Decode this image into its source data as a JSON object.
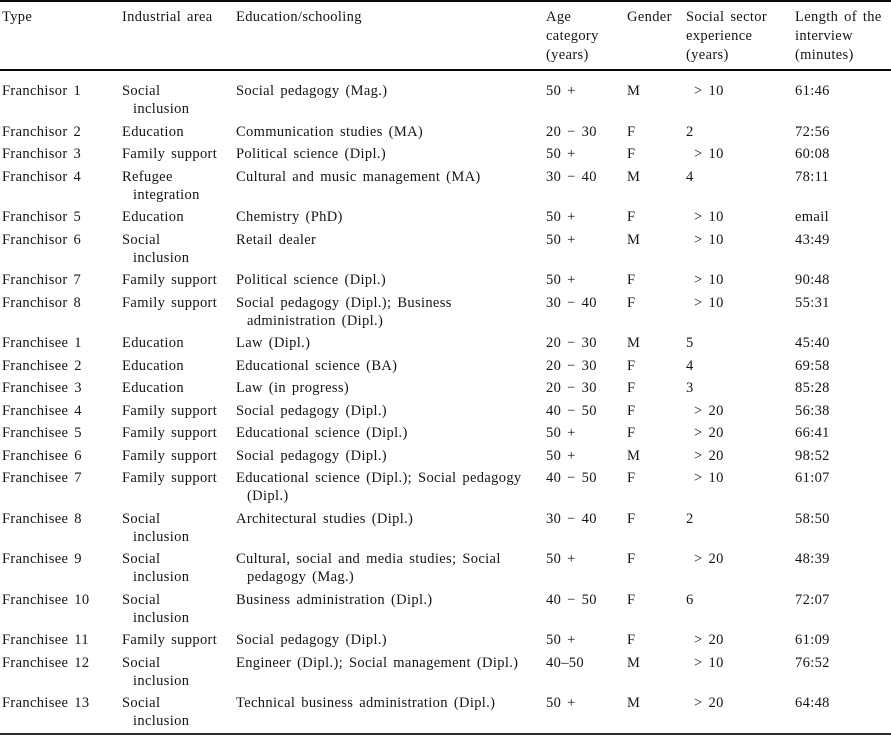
{
  "table": {
    "columns": [
      "Type",
      "Industrial area",
      "Education/schooling",
      "Age category (years)",
      "Gender",
      "Social sector experience (years)",
      "Length of the interview (minutes)"
    ],
    "rows": [
      {
        "type": "Franchisor 1",
        "industrial_area": "Social\ninclusion",
        "education": "Social pedagogy (Mag.)",
        "age": "50 +",
        "gender": "M",
        "experience": "> 10",
        "length": "61:46"
      },
      {
        "type": "Franchisor 2",
        "industrial_area": "Education",
        "education": "Communication studies (MA)",
        "age": "20 − 30",
        "gender": "F",
        "experience": "2",
        "length": "72:56"
      },
      {
        "type": "Franchisor 3",
        "industrial_area": "Family support",
        "education": "Political science (Dipl.)",
        "age": "50 +",
        "gender": "F",
        "experience": "> 10",
        "length": "60:08"
      },
      {
        "type": "Franchisor 4",
        "industrial_area": "Refugee\nintegration",
        "education": "Cultural and music management (MA)",
        "age": "30 − 40",
        "gender": "M",
        "experience": "4",
        "length": "78:11"
      },
      {
        "type": "Franchisor 5",
        "industrial_area": "Education",
        "education": "Chemistry (PhD)",
        "age": "50 +",
        "gender": "F",
        "experience": "> 10",
        "length": "email"
      },
      {
        "type": "Franchisor 6",
        "industrial_area": "Social\ninclusion",
        "education": "Retail dealer",
        "age": "50 +",
        "gender": "M",
        "experience": "> 10",
        "length": "43:49"
      },
      {
        "type": "Franchisor 7",
        "industrial_area": "Family support",
        "education": "Political science (Dipl.)",
        "age": "50 +",
        "gender": "F",
        "experience": "> 10",
        "length": "90:48"
      },
      {
        "type": "Franchisor 8",
        "industrial_area": "Family support",
        "education": "Social pedagogy (Dipl.); Business\nadministration (Dipl.)",
        "age": "30 − 40",
        "gender": "F",
        "experience": "> 10",
        "length": "55:31"
      },
      {
        "type": "Franchisee 1",
        "industrial_area": "Education",
        "education": "Law (Dipl.)",
        "age": "20 − 30",
        "gender": "M",
        "experience": "5",
        "length": "45:40"
      },
      {
        "type": "Franchisee 2",
        "industrial_area": "Education",
        "education": "Educational science (BA)",
        "age": "20 − 30",
        "gender": "F",
        "experience": "4",
        "length": "69:58"
      },
      {
        "type": "Franchisee 3",
        "industrial_area": "Education",
        "education": "Law (in progress)",
        "age": "20 − 30",
        "gender": "F",
        "experience": "3",
        "length": "85:28"
      },
      {
        "type": "Franchisee 4",
        "industrial_area": "Family support",
        "education": "Social pedagogy (Dipl.)",
        "age": "40 − 50",
        "gender": "F",
        "experience": "> 20",
        "length": "56:38"
      },
      {
        "type": "Franchisee 5",
        "industrial_area": "Family support",
        "education": "Educational science (Dipl.)",
        "age": "50 +",
        "gender": "F",
        "experience": "> 20",
        "length": "66:41"
      },
      {
        "type": "Franchisee 6",
        "industrial_area": "Family support",
        "education": "Social pedagogy (Dipl.)",
        "age": "50 +",
        "gender": "M",
        "experience": "> 20",
        "length": "98:52"
      },
      {
        "type": "Franchisee 7",
        "industrial_area": "Family support",
        "education": "Educational science (Dipl.); Social pedagogy\n(Dipl.)",
        "age": "40 − 50",
        "gender": "F",
        "experience": "> 10",
        "length": "61:07"
      },
      {
        "type": "Franchisee 8",
        "industrial_area": "Social\ninclusion",
        "education": "Architectural studies (Dipl.)",
        "age": "30 − 40",
        "gender": "F",
        "experience": "2",
        "length": "58:50"
      },
      {
        "type": "Franchisee 9",
        "industrial_area": "Social\ninclusion",
        "education": "Cultural, social and media studies; Social\npedagogy (Mag.)",
        "age": "50 +",
        "gender": "F",
        "experience": "> 20",
        "length": "48:39"
      },
      {
        "type": "Franchisee 10",
        "industrial_area": "Social\ninclusion",
        "education": "Business administration (Dipl.)",
        "age": "40 − 50",
        "gender": "F",
        "experience": "6",
        "length": "72:07"
      },
      {
        "type": "Franchisee 11",
        "industrial_area": "Family support",
        "education": "Social pedagogy (Dipl.)",
        "age": "50 +",
        "gender": "F",
        "experience": "> 20",
        "length": "61:09"
      },
      {
        "type": "Franchisee 12",
        "industrial_area": "Social\ninclusion",
        "education": "Engineer (Dipl.); Social management (Dipl.)",
        "age": "40–50",
        "gender": "M",
        "experience": "> 10",
        "length": "76:52"
      },
      {
        "type": "Franchisee 13",
        "industrial_area": "Social\ninclusion",
        "education": "Technical business administration (Dipl.)",
        "age": "50 +",
        "gender": "M",
        "experience": "> 20",
        "length": "64:48"
      }
    ]
  }
}
